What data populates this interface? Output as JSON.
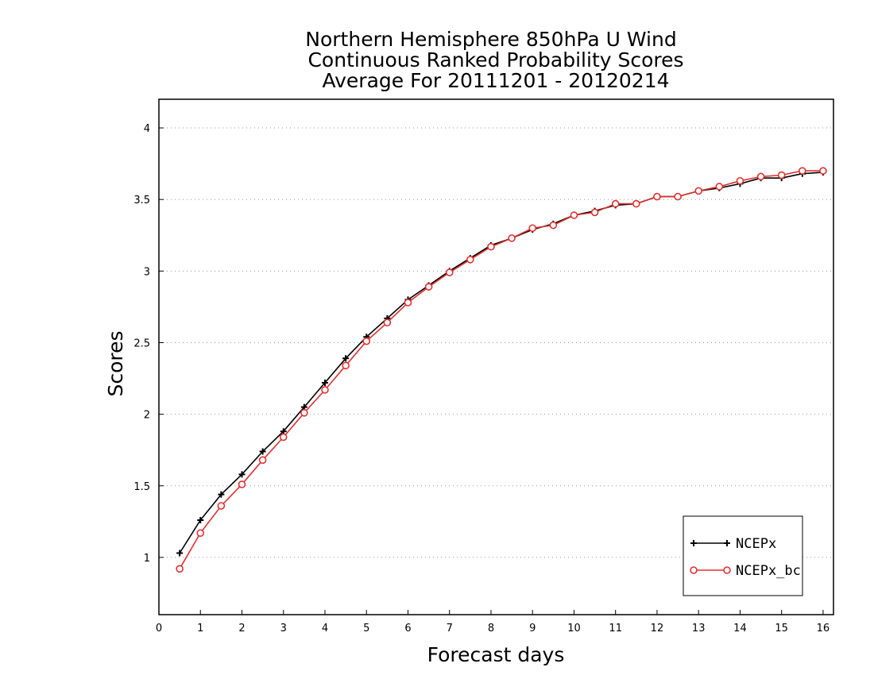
{
  "chart_data": {
    "type": "line",
    "title": [
      "Northern Hemisphere 850hPa U Wind",
      "Continuous Ranked Probability Scores",
      "Average For 20111201 - 20120214"
    ],
    "xlabel": "Forecast days",
    "ylabel": "Scores",
    "xlim": [
      0,
      16.25
    ],
    "ylim": [
      0.6,
      4.2
    ],
    "xticks": [
      0,
      1,
      2,
      3,
      4,
      5,
      6,
      7,
      8,
      9,
      10,
      11,
      12,
      13,
      14,
      15,
      16
    ],
    "yticks": [
      1,
      1.5,
      2,
      2.5,
      3,
      3.5,
      4
    ],
    "ytick_labels": [
      "1",
      "1.5",
      "2",
      "2.5",
      "3",
      "3.5",
      "4"
    ],
    "grid": "horizontal dotted",
    "legend_position": "bottom-right",
    "x": [
      0.5,
      1,
      1.5,
      2,
      2.5,
      3,
      3.5,
      4,
      4.5,
      5,
      5.5,
      6,
      6.5,
      7,
      7.5,
      8,
      8.5,
      9,
      9.5,
      10,
      10.5,
      11,
      11.5,
      12,
      12.5,
      13,
      13.5,
      14,
      14.5,
      15,
      15.5,
      16
    ],
    "series": [
      {
        "name": "NCEPx",
        "color": "#000000",
        "marker": "plus",
        "values": [
          1.03,
          1.26,
          1.44,
          1.58,
          1.74,
          1.88,
          2.05,
          2.22,
          2.39,
          2.54,
          2.67,
          2.8,
          2.9,
          3.0,
          3.09,
          3.18,
          3.23,
          3.29,
          3.33,
          3.39,
          3.42,
          3.46,
          3.47,
          3.52,
          3.52,
          3.56,
          3.58,
          3.61,
          3.65,
          3.65,
          3.68,
          3.69
        ]
      },
      {
        "name": "NCEPx_bc",
        "color": "#e03030",
        "marker": "circle",
        "values": [
          0.92,
          1.17,
          1.36,
          1.51,
          1.68,
          1.84,
          2.01,
          2.17,
          2.34,
          2.51,
          2.64,
          2.78,
          2.89,
          2.99,
          3.08,
          3.17,
          3.23,
          3.3,
          3.32,
          3.39,
          3.41,
          3.47,
          3.47,
          3.52,
          3.52,
          3.56,
          3.59,
          3.63,
          3.66,
          3.67,
          3.7,
          3.7
        ]
      }
    ]
  }
}
